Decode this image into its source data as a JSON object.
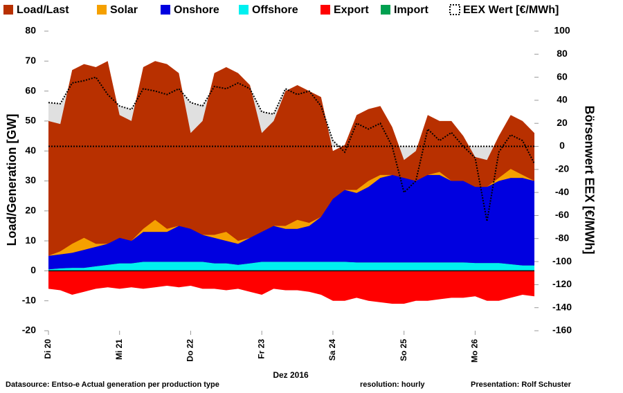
{
  "chart_data": {
    "type": "area",
    "ylabel": "Load/Generation  [GW]",
    "y2label": "Börsenwert EEX  [€/MWh]",
    "xlabel": "Dez 2016",
    "notes": [
      "Datasource: Entso-e  Actual generation per production type",
      "resolution: hourly",
      "Presentation:  Rolf Schuster"
    ],
    "categories": [
      "Di 20",
      null,
      null,
      null,
      null,
      null,
      "Mi 21",
      null,
      null,
      null,
      null,
      null,
      "Do 22",
      null,
      null,
      null,
      null,
      null,
      "Fr 23",
      null,
      null,
      null,
      null,
      null,
      "Sa 24",
      null,
      null,
      null,
      null,
      null,
      "So 25",
      null,
      null,
      null,
      null,
      null,
      "Mo 26",
      null,
      null,
      null,
      null,
      null
    ],
    "ylim": [
      -20,
      80
    ],
    "yticks": [
      -20,
      -10,
      0,
      10,
      20,
      30,
      40,
      50,
      60,
      70,
      80
    ],
    "y2lim": [
      -160,
      100
    ],
    "y2ticks": [
      -160,
      -140,
      -120,
      -100,
      -80,
      -60,
      -40,
      -20,
      0,
      20,
      40,
      60,
      80,
      100
    ],
    "series": [
      {
        "name": "Load/Last",
        "color": "#b83000",
        "values": [
          50,
          49,
          67,
          69,
          68,
          70,
          52,
          50,
          68,
          70,
          69,
          66,
          46,
          50,
          66,
          68,
          66,
          62,
          46,
          50,
          60,
          62,
          60,
          58,
          40,
          42,
          52,
          54,
          55,
          48,
          37,
          40,
          52,
          50,
          50,
          45,
          38,
          37,
          45,
          52,
          50,
          46
        ]
      },
      {
        "name": "Solar",
        "color": "#f5a000",
        "stack": "generation",
        "values": [
          0,
          1,
          3,
          4,
          1,
          0,
          0,
          0,
          1,
          4,
          1,
          0,
          0,
          0,
          1,
          3,
          1,
          0,
          0,
          0,
          1,
          3,
          1,
          0,
          0,
          0,
          1,
          2,
          1,
          0,
          0,
          0,
          0,
          1,
          0,
          0,
          0,
          0,
          1,
          3,
          1,
          0
        ]
      },
      {
        "name": "Onshore",
        "color": "#0000e0",
        "stack": "generation",
        "values": [
          4.5,
          4.7,
          5,
          6,
          6.5,
          7,
          8.5,
          7.5,
          10,
          10,
          10,
          12,
          11,
          9,
          8.5,
          7.5,
          7,
          8.5,
          10,
          12,
          11,
          11,
          12,
          15,
          21,
          24,
          23.2,
          25.2,
          28.2,
          29.2,
          28.2,
          27.2,
          29.2,
          29.2,
          27.2,
          27.2,
          25.4,
          25.4,
          27.4,
          28.8,
          29.2,
          28.2
        ]
      },
      {
        "name": "Offshore",
        "color": "#00f0f0",
        "stack": "generation",
        "values": [
          0.5,
          0.8,
          1,
          1,
          1.5,
          2,
          2.5,
          2.5,
          3,
          3,
          3,
          3,
          3,
          3,
          2.5,
          2.5,
          2,
          2.5,
          3,
          3,
          3,
          3,
          3,
          3,
          3,
          3,
          2.8,
          2.8,
          2.8,
          2.8,
          2.8,
          2.8,
          2.8,
          2.8,
          2.8,
          2.8,
          2.6,
          2.6,
          2.6,
          2.2,
          1.8,
          1.8
        ]
      },
      {
        "name": "Export",
        "color": "#ff0000",
        "values": [
          -6,
          -6.5,
          -8,
          -7,
          -6,
          -5.5,
          -6,
          -5.5,
          -6,
          -5.5,
          -5,
          -5.5,
          -5,
          -6,
          -6,
          -6.5,
          -6,
          -7,
          -8,
          -6,
          -6.5,
          -6.5,
          -7,
          -8,
          -10,
          -10,
          -9,
          -10,
          -10.5,
          -11,
          -11,
          -10,
          -10,
          -9.5,
          -9,
          -9,
          -8.5,
          -10,
          -10,
          -9,
          -8,
          -8.5
        ]
      },
      {
        "name": "Import",
        "color": "#00a050",
        "values": [
          0,
          0,
          0,
          0,
          0,
          0,
          0,
          0,
          0,
          0,
          0,
          0,
          0,
          0,
          0,
          0,
          0,
          0,
          0,
          0,
          0,
          0,
          0,
          0,
          0,
          0,
          0,
          0,
          0,
          0,
          0,
          0,
          0,
          0,
          0,
          0,
          0,
          0,
          0,
          0,
          0,
          0
        ]
      },
      {
        "name": "EEX Wert [€/MWh]",
        "color": "#000000",
        "axis": "y2",
        "line_style": "dotted",
        "fill": "#e0e0e0",
        "values": [
          38,
          37,
          55,
          57,
          60,
          45,
          35,
          32,
          50,
          48,
          45,
          50,
          38,
          35,
          52,
          50,
          55,
          50,
          30,
          28,
          50,
          45,
          48,
          35,
          5,
          -5,
          20,
          15,
          20,
          0,
          -40,
          -30,
          15,
          5,
          12,
          0,
          -10,
          -65,
          -5,
          10,
          5,
          -15
        ]
      }
    ]
  }
}
